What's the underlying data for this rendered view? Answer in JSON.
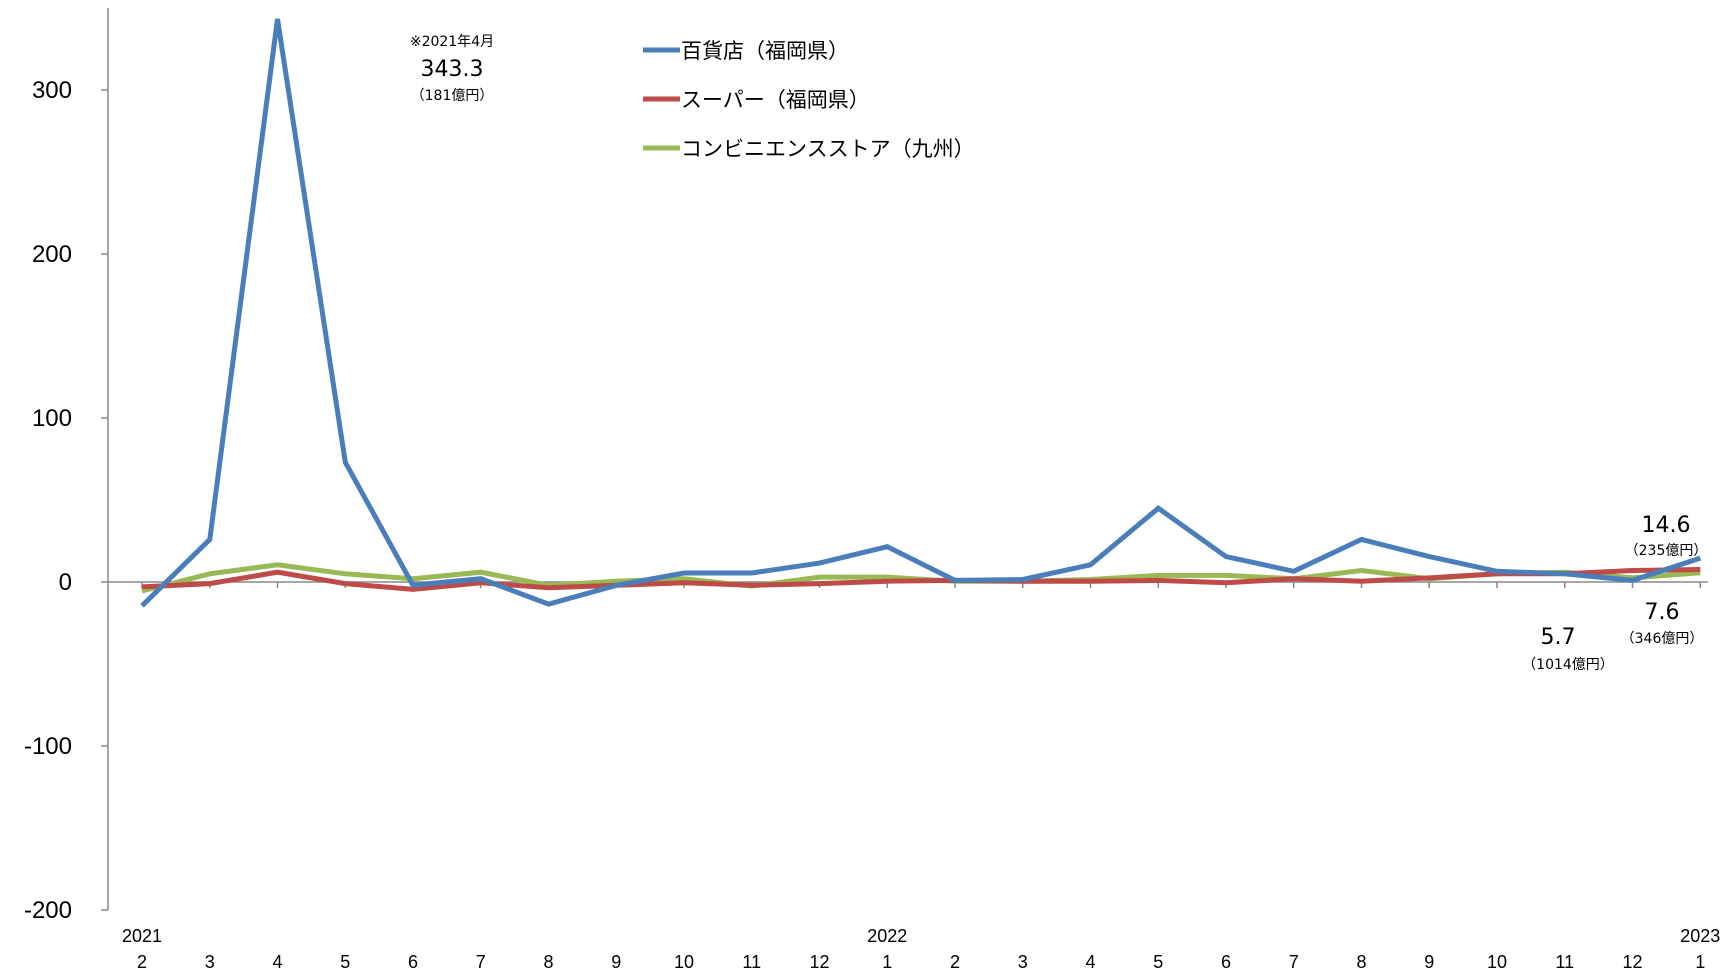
{
  "chart_data": {
    "type": "line",
    "title": "",
    "xlabel": "",
    "ylabel": "",
    "ylim": [
      -200,
      340
    ],
    "yticks": [
      300,
      200,
      100,
      0,
      -100,
      -200
    ],
    "categories": [
      "2",
      "3",
      "4",
      "5",
      "6",
      "7",
      "8",
      "9",
      "10",
      "11",
      "12",
      "1",
      "2",
      "3",
      "4",
      "5",
      "6",
      "7",
      "8",
      "9",
      "10",
      "11",
      "12",
      "1"
    ],
    "year_labels": [
      {
        "index": 0,
        "label": "2021"
      },
      {
        "index": 11,
        "label": "2022"
      },
      {
        "index": 23,
        "label": "2023"
      }
    ],
    "series": [
      {
        "name": "百貨店（福岡県）",
        "color": "#4a7ebb",
        "values": [
          -14.5,
          26,
          343.3,
          73,
          -2,
          2,
          -13.5,
          -2,
          5.5,
          5.5,
          11.5,
          21.5,
          1,
          1.5,
          10.5,
          45,
          15.5,
          6.5,
          26,
          15.5,
          6.5,
          5,
          1,
          14.6
        ]
      },
      {
        "name": "スーパー（福岡県）",
        "color": "#be4b48",
        "values": [
          -3,
          -1,
          6,
          -1,
          -4.5,
          -0.5,
          -3.5,
          -2,
          -0.5,
          -2,
          -1,
          0.5,
          1,
          0.5,
          0.5,
          1,
          -0.5,
          2,
          0.5,
          2.5,
          5,
          5,
          7,
          7.6
        ]
      },
      {
        "name": "コンビニエンスストア（九州）",
        "color": "#98b954",
        "values": [
          -5.5,
          5,
          10.5,
          5,
          2,
          6,
          -2,
          0.5,
          2,
          -2.5,
          3,
          3,
          0.5,
          0.5,
          1.5,
          4,
          4,
          2,
          7,
          2,
          5,
          6,
          2.5,
          5.7
        ]
      }
    ],
    "legend_position": "top",
    "grid": false,
    "annotations": [
      {
        "series": "百貨店（福岡県）",
        "index": 2,
        "note": "※2021年4月",
        "value_text": "343.3",
        "amount": "（181億円）"
      },
      {
        "series": "百貨店（福岡県）",
        "index": 23,
        "value_text": "14.6",
        "amount": "（235億円）"
      },
      {
        "series": "スーパー（福岡県）",
        "index": 23,
        "value_text": "7.6",
        "amount": "（346億円）"
      },
      {
        "series": "コンビニエンスストア（九州）",
        "index": 23,
        "value_text": "5.7",
        "amount": "（1014億円）"
      }
    ]
  }
}
